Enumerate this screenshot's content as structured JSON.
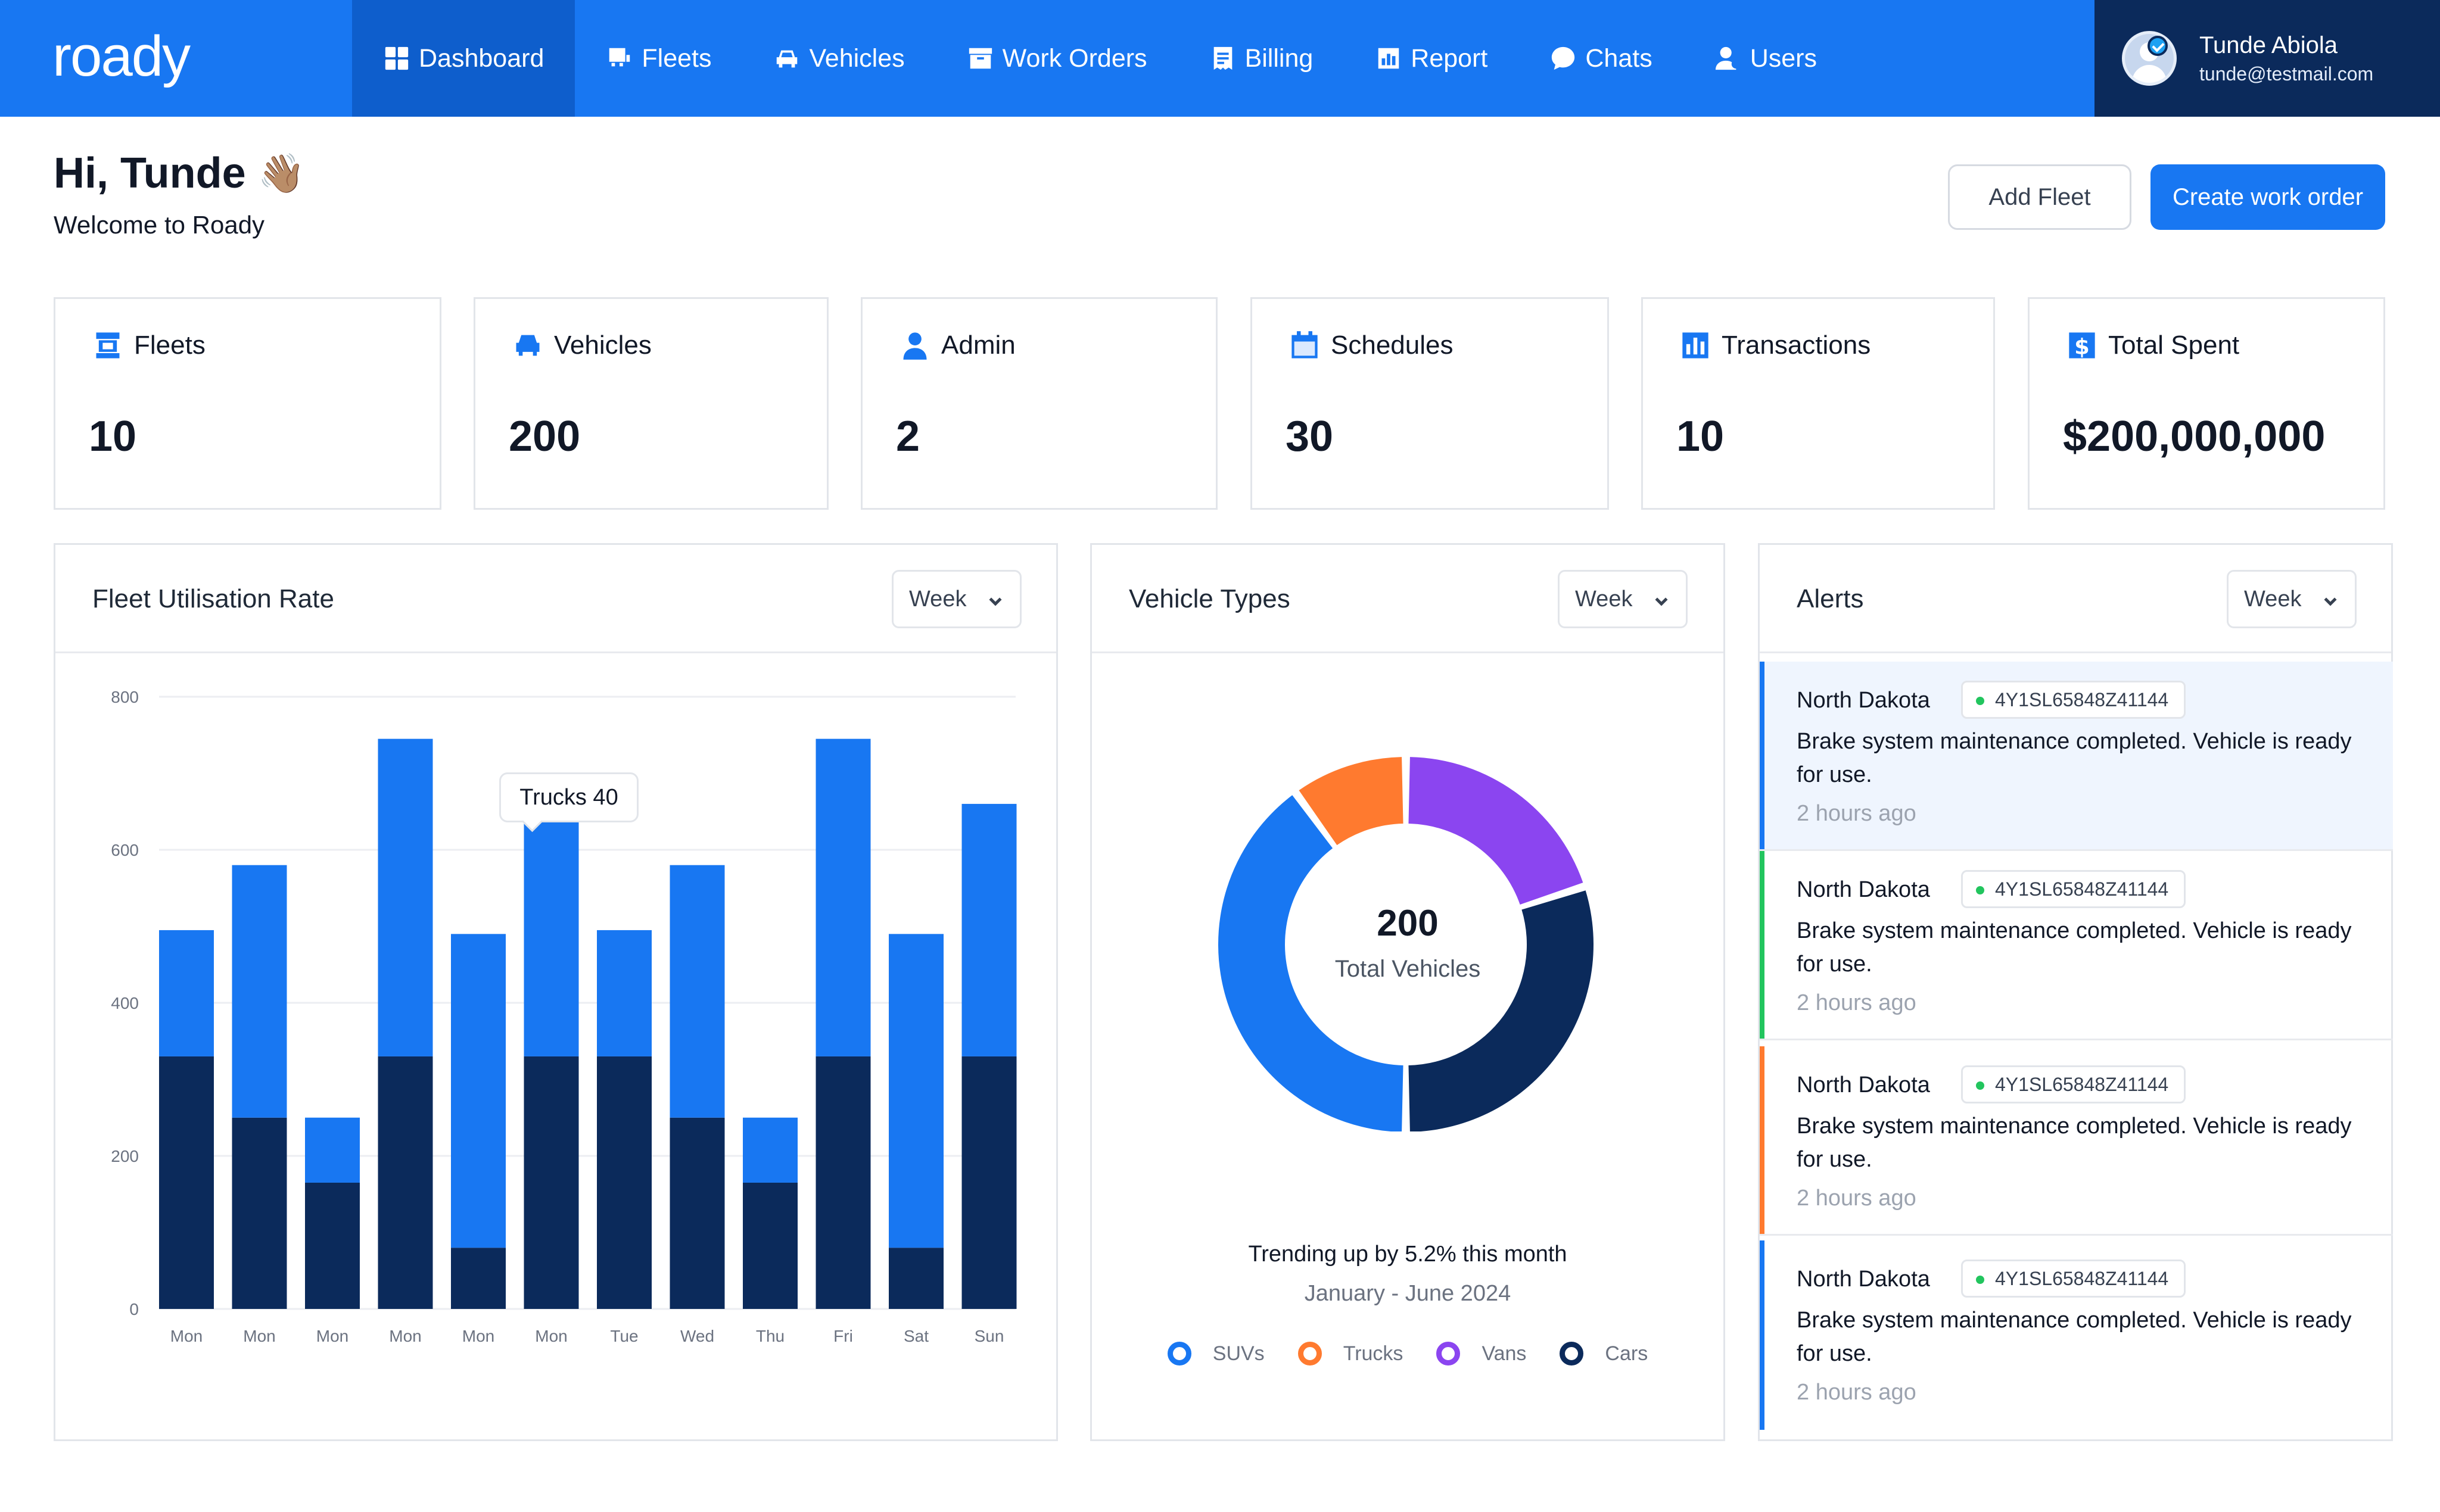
{
  "app": {
    "logo": "roady"
  },
  "nav": {
    "items": [
      {
        "label": "Dashboard",
        "icon": "dashboard-icon",
        "active": true
      },
      {
        "label": "Fleets",
        "icon": "fleet-icon"
      },
      {
        "label": "Vehicles",
        "icon": "car-icon"
      },
      {
        "label": "Work Orders",
        "icon": "archive-icon"
      },
      {
        "label": "Billing",
        "icon": "receipt-icon"
      },
      {
        "label": "Report",
        "icon": "report-icon"
      },
      {
        "label": "Chats",
        "icon": "chat-icon"
      },
      {
        "label": "Users",
        "icon": "users-icon"
      }
    ]
  },
  "user": {
    "name": "Tunde Abiola",
    "email": "tunde@testmail.com"
  },
  "greeting": {
    "title": "Hi, Tunde",
    "emoji": "👋🏽",
    "subtitle": "Welcome to Roady"
  },
  "actions": {
    "add_fleet": "Add Fleet",
    "create_work_order": "Create work order"
  },
  "stats": [
    {
      "label": "Fleets",
      "value": "10",
      "icon": "fleet-icon"
    },
    {
      "label": "Vehicles",
      "value": "200",
      "icon": "car-icon"
    },
    {
      "label": "Admin",
      "value": "2",
      "icon": "user-icon"
    },
    {
      "label": "Schedules",
      "value": "30",
      "icon": "calendar-icon"
    },
    {
      "label": "Transactions",
      "value": "10",
      "icon": "bar-chart-icon"
    },
    {
      "label": "Total Spent",
      "value": "$200,000,000",
      "icon": "dollar-icon"
    }
  ],
  "utilisation": {
    "title": "Fleet Utilisation Rate",
    "period": "Week",
    "tooltip": "Trucks 40"
  },
  "vehicle_types": {
    "title": "Vehicle Types",
    "period": "Week",
    "total": "200",
    "total_label": "Total Vehicles",
    "trend": "Trending up by 5.2% this month",
    "range": "January - June 2024",
    "legend": [
      {
        "label": "SUVs",
        "color": "#1877F2"
      },
      {
        "label": "Trucks",
        "color": "#FF7A2F"
      },
      {
        "label": "Vans",
        "color": "#8B45F0"
      },
      {
        "label": "Cars",
        "color": "#0B2A5B"
      }
    ]
  },
  "alerts": {
    "title": "Alerts",
    "period": "Week",
    "items": [
      {
        "location": "North Dakota",
        "vin": "4Y1SL65848Z41144",
        "message": "Brake system maintenance completed. Vehicle is ready for use.",
        "time": "2 hours ago",
        "color": "#1877F2",
        "highlight": true
      },
      {
        "location": "North Dakota",
        "vin": "4Y1SL65848Z41144",
        "message": "Brake system maintenance completed. Vehicle is ready for use.",
        "time": "2 hours ago",
        "color": "#22C55E",
        "highlight": false
      },
      {
        "location": "North Dakota",
        "vin": "4Y1SL65848Z41144",
        "message": "Brake system maintenance completed. Vehicle is ready for use.",
        "time": "2 hours ago",
        "color": "#FF7A2F",
        "highlight": false
      },
      {
        "location": "North Dakota",
        "vin": "4Y1SL65848Z41144",
        "message": "Brake system maintenance completed. Vehicle is ready for use.",
        "time": "2 hours ago",
        "color": "#1877F2",
        "highlight": false
      }
    ]
  },
  "chart_data": [
    {
      "type": "bar",
      "stacked": true,
      "categories": [
        "Mon",
        "Mon",
        "Mon",
        "Mon",
        "Mon",
        "Mon",
        "Tue",
        "Wed",
        "Thu",
        "Fri",
        "Sat",
        "Sun"
      ],
      "series": [
        {
          "values": [
            330,
            250,
            165,
            330,
            80,
            330,
            330,
            250,
            165,
            330,
            80,
            330
          ],
          "color": "#0B2A5B"
        },
        {
          "values": [
            165,
            330,
            85,
            415,
            410,
            330,
            165,
            330,
            85,
            415,
            410,
            330
          ],
          "color": "#1877F2"
        }
      ],
      "yticks": [
        0,
        200,
        400,
        600,
        800
      ],
      "ylim": [
        0,
        800
      ],
      "grid": true
    },
    {
      "type": "pie",
      "donut": true,
      "categories": [
        "SUVs",
        "Trucks",
        "Vans",
        "Cars"
      ],
      "values": [
        80,
        20,
        40,
        60
      ],
      "colors": [
        "#1877F2",
        "#FF7A2F",
        "#8B45F0",
        "#0B2A5B"
      ]
    }
  ]
}
